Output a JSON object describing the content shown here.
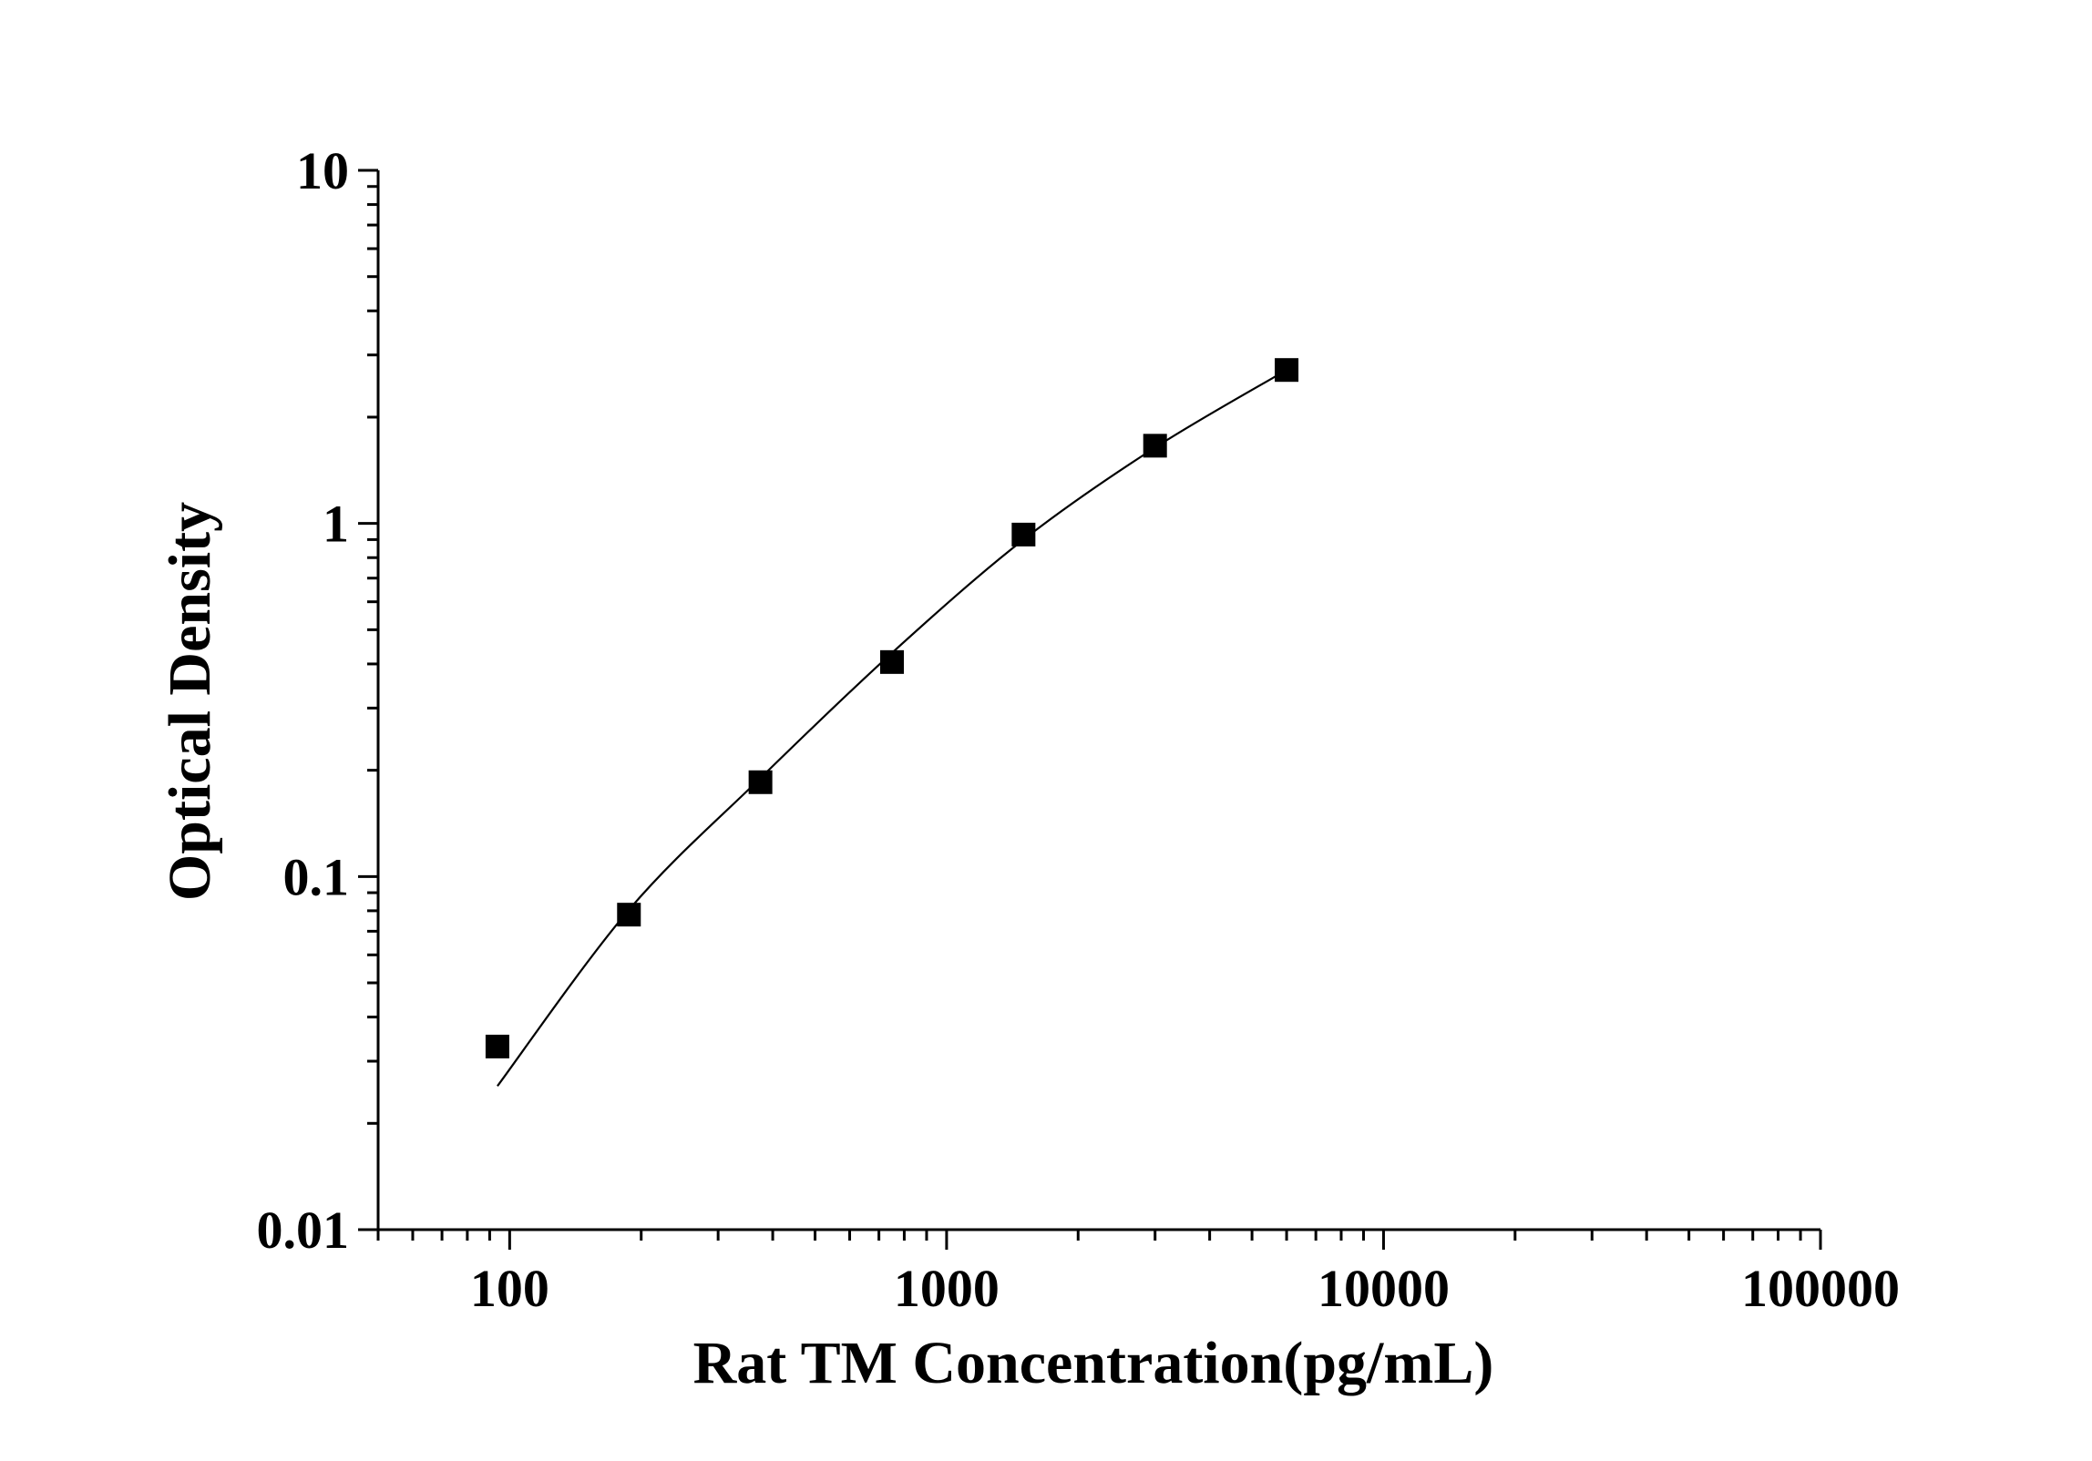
{
  "chart_data": {
    "type": "scatter",
    "xlabel": "Rat TM Concentration(pg/mL)",
    "ylabel": "Optical Density",
    "x_scale": "log",
    "y_scale": "log",
    "xlim": [
      50,
      100000
    ],
    "ylim": [
      0.01,
      10
    ],
    "x_ticks": [
      {
        "value": 100,
        "label": "100"
      },
      {
        "value": 1000,
        "label": "1000"
      },
      {
        "value": 10000,
        "label": "10000"
      },
      {
        "value": 100000,
        "label": "100000"
      }
    ],
    "y_ticks": [
      {
        "value": 0.01,
        "label": "0.01"
      },
      {
        "value": 0.1,
        "label": "0.1"
      },
      {
        "value": 1,
        "label": "1"
      },
      {
        "value": 10,
        "label": "10"
      }
    ],
    "grid": false,
    "legend": "none",
    "series": [
      {
        "marker": "square",
        "color": "#000000",
        "points": [
          {
            "x": 93.75,
            "y": 0.033
          },
          {
            "x": 187.5,
            "y": 0.078
          },
          {
            "x": 375,
            "y": 0.185
          },
          {
            "x": 750,
            "y": 0.405
          },
          {
            "x": 1500,
            "y": 0.93
          },
          {
            "x": 3000,
            "y": 1.66
          },
          {
            "x": 6000,
            "y": 2.72
          }
        ]
      }
    ],
    "fit_line": {
      "color": "#000000",
      "points": [
        {
          "x": 93.75,
          "y": 0.0255
        },
        {
          "x": 187.5,
          "y": 0.0805
        },
        {
          "x": 375,
          "y": 0.19
        },
        {
          "x": 750,
          "y": 0.43
        },
        {
          "x": 1500,
          "y": 0.9
        },
        {
          "x": 3000,
          "y": 1.64
        },
        {
          "x": 6000,
          "y": 2.72
        }
      ]
    }
  }
}
